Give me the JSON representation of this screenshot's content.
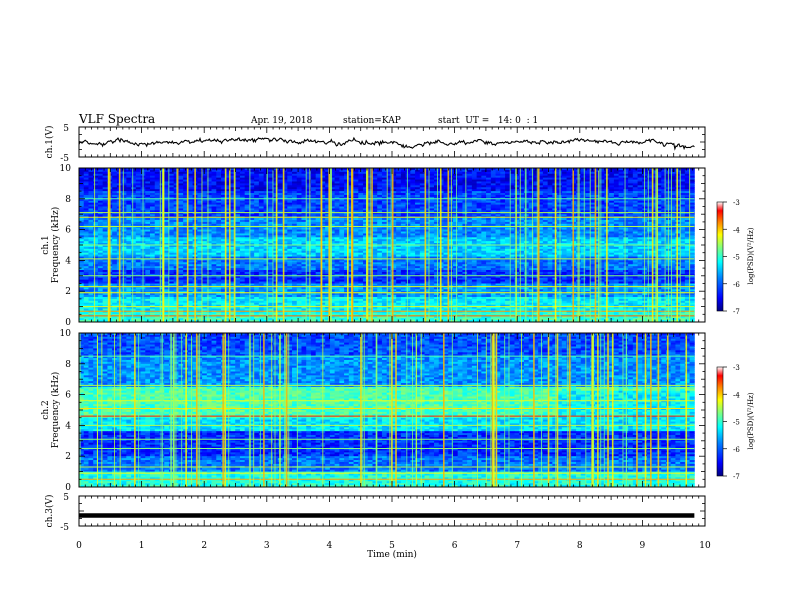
{
  "header": {
    "title": "VLF Spectra",
    "date": "Apr. 19, 2018",
    "station": "station=KAP",
    "start": "start  UT =   14: 0  : 1"
  },
  "chart_data": [
    {
      "type": "line",
      "panel": "ch1-waveform",
      "ylabel": "ch.1(V)",
      "ylim": [
        -5,
        5
      ],
      "yticks": [
        "5",
        "-5"
      ],
      "xlim": [
        0,
        10
      ],
      "x_end_min": 9.83,
      "note_values": "noisy waveform fluctuating approximately between -1.5 and 1.5 V"
    },
    {
      "type": "heatmap",
      "panel": "ch1-spectrogram",
      "ylabel": "ch.1\nFrequency (kHz)",
      "ylabel_line1": "ch.1",
      "ylabel_line2": "Frequency (kHz)",
      "ylim": [
        0,
        10
      ],
      "yticks": [
        "0",
        "2",
        "4",
        "6",
        "8",
        "10"
      ],
      "xlim": [
        0,
        10
      ],
      "colorbar": {
        "label": "log(PSD)(V²/Hz)",
        "range": [
          -7,
          -3
        ],
        "ticks": [
          "-3",
          "-4",
          "-5",
          "-6",
          "-7"
        ]
      }
    },
    {
      "type": "heatmap",
      "panel": "ch2-spectrogram",
      "ylabel": "ch.2\nFrequency (kHz)",
      "ylabel_line1": "ch.2",
      "ylabel_line2": "Frequency (kHz)",
      "ylim": [
        0,
        10
      ],
      "yticks": [
        "0",
        "2",
        "4",
        "6",
        "8",
        "10"
      ],
      "xlim": [
        0,
        10
      ],
      "colorbar": {
        "label": "log(PSD)(V²/Hz)",
        "range": [
          -7,
          -3
        ],
        "ticks": [
          "-3",
          "-4",
          "-5",
          "-6",
          "-7"
        ]
      }
    },
    {
      "type": "line",
      "panel": "ch3-waveform",
      "ylabel": "ch.3(V)",
      "ylim": [
        -5,
        5
      ],
      "yticks": [
        "5",
        "-5"
      ],
      "xlim": [
        0,
        10
      ],
      "x_end_min": 9.83,
      "values_constant": -1.5
    }
  ],
  "xaxis": {
    "label": "Time (min)",
    "ticks": [
      "0",
      "1",
      "2",
      "3",
      "4",
      "5",
      "6",
      "7",
      "8",
      "9",
      "10"
    ]
  },
  "colors": {
    "colormap": [
      "#00007f",
      "#0000ff",
      "#007fff",
      "#00ffff",
      "#7fff7f",
      "#ffff00",
      "#ff7f00",
      "#ff0000",
      "#ffffff"
    ]
  }
}
